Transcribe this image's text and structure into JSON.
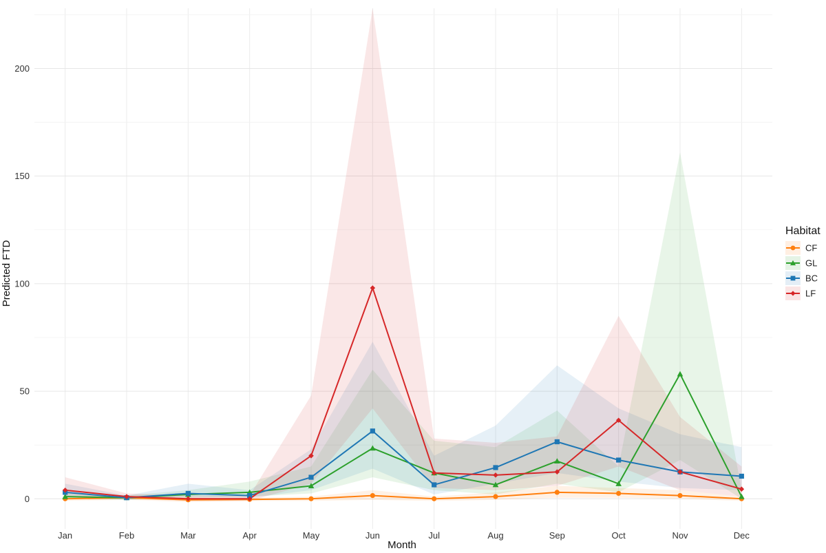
{
  "chart_data": {
    "type": "line",
    "title": "",
    "xlabel": "Month",
    "ylabel": "Predicted FTD",
    "categories": [
      "Jan",
      "Feb",
      "Mar",
      "Apr",
      "May",
      "Jun",
      "Jul",
      "Aug",
      "Sep",
      "Oct",
      "Nov",
      "Dec"
    ],
    "ylim": [
      -14,
      228
    ],
    "yticks": [
      0,
      50,
      100,
      150,
      200
    ],
    "grid": true,
    "legend": {
      "title": "Habitat",
      "position": "right"
    },
    "series": [
      {
        "name": "CF",
        "color": "#ff7f0e",
        "marker": "circle",
        "values": [
          0,
          0.5,
          -0.5,
          -0.3,
          0,
          1.5,
          0,
          1,
          3,
          2.5,
          1.5,
          0
        ],
        "lower": [
          -1,
          -0.5,
          -1.5,
          -1,
          -1,
          -0.5,
          -1,
          -0.5,
          0.5,
          0.5,
          0,
          -1
        ],
        "upper": [
          1,
          1.5,
          0.5,
          0.5,
          1,
          4,
          1,
          3,
          6,
          5,
          4,
          1
        ]
      },
      {
        "name": "GL",
        "color": "#2ca02c",
        "marker": "triangle",
        "values": [
          1,
          0.5,
          2,
          3,
          6,
          23.5,
          12,
          6.5,
          17.5,
          7,
          58,
          1
        ],
        "lower": [
          0,
          -0.5,
          0.5,
          1,
          2.5,
          10,
          4,
          2,
          7,
          3,
          18,
          0
        ],
        "upper": [
          3,
          1.5,
          4,
          8,
          15,
          60,
          27,
          24,
          41,
          15,
          161,
          4
        ]
      },
      {
        "name": "BC",
        "color": "#1f77b4",
        "marker": "square",
        "values": [
          3,
          0.5,
          2.5,
          1.5,
          10,
          31.5,
          6.5,
          14.5,
          26.5,
          18,
          12.5,
          10.5
        ],
        "lower": [
          1,
          -0.5,
          1,
          0.5,
          4,
          14,
          2,
          7,
          12,
          8,
          5,
          4
        ],
        "upper": [
          7,
          1.5,
          7,
          4,
          23,
          73,
          20,
          34,
          62,
          42,
          30,
          24
        ]
      },
      {
        "name": "LF",
        "color": "#d62728",
        "marker": "diamond",
        "values": [
          4,
          1,
          0,
          0,
          20,
          98,
          12,
          11,
          12.5,
          36.5,
          12.5,
          4.5
        ],
        "lower": [
          1,
          0,
          -1,
          -1,
          7,
          42,
          5,
          4,
          6,
          15,
          4,
          1
        ],
        "upper": [
          10,
          2.5,
          1.5,
          1.5,
          48,
          228,
          28,
          26,
          29,
          85,
          38,
          15
        ]
      }
    ]
  }
}
